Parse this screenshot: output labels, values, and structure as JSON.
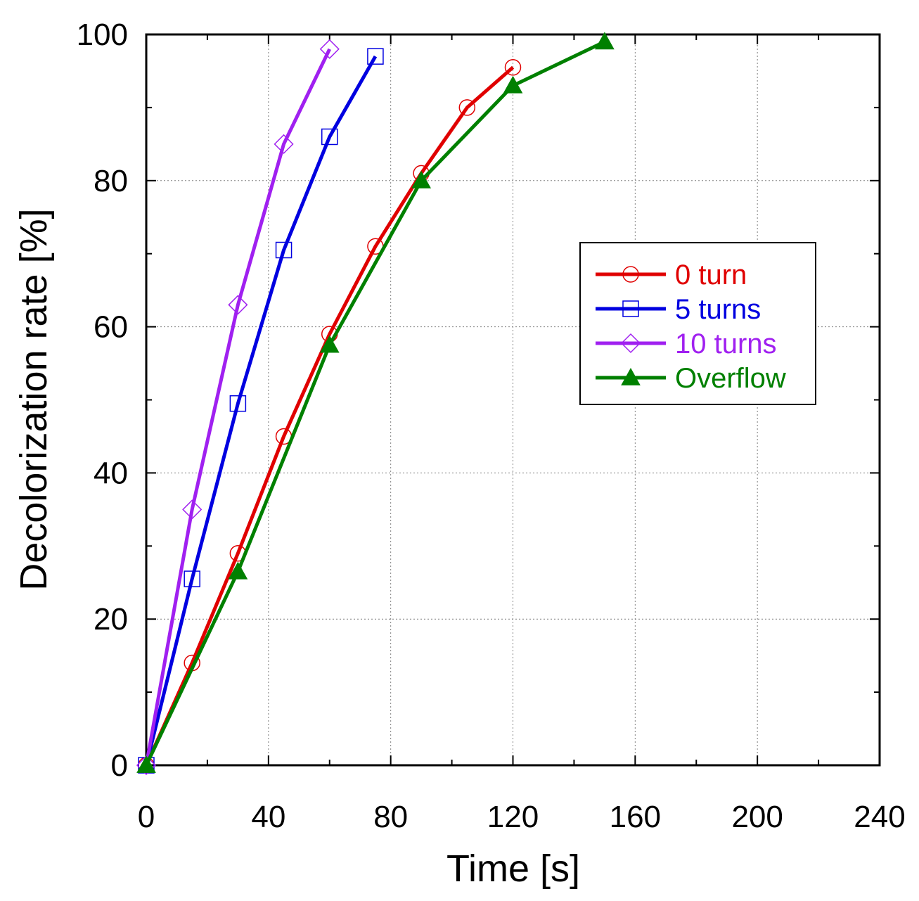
{
  "chart_data": {
    "type": "line",
    "title": "",
    "xlabel": "Time [s]",
    "ylabel": "Decolorization rate [%]",
    "xlim": [
      0,
      240
    ],
    "ylim": [
      0,
      100
    ],
    "xticks": [
      0,
      40,
      80,
      120,
      160,
      200,
      240
    ],
    "yticks": [
      0,
      20,
      40,
      60,
      80,
      100
    ],
    "grid": true,
    "legend_position": "right-middle",
    "series": [
      {
        "name": "0 turn",
        "color": "#e00000",
        "marker": "circle-open",
        "x": [
          0,
          15,
          30,
          45,
          60,
          75,
          90,
          105,
          120
        ],
        "y": [
          0,
          14,
          29,
          45,
          59,
          71,
          81,
          90,
          95.5
        ]
      },
      {
        "name": "5 turns",
        "color": "#0000e0",
        "marker": "square-open",
        "x": [
          0,
          15,
          30,
          45,
          60,
          75
        ],
        "y": [
          0,
          25.5,
          49.5,
          70.5,
          86,
          97
        ]
      },
      {
        "name": "10 turns",
        "color": "#a020f0",
        "marker": "diamond-open",
        "x": [
          0,
          15,
          30,
          45,
          60
        ],
        "y": [
          0,
          35,
          63,
          85,
          98
        ]
      },
      {
        "name": "Overflow",
        "color": "#008000",
        "marker": "triangle-filled",
        "x": [
          0,
          30,
          60,
          90,
          120,
          150
        ],
        "y": [
          0,
          26.5,
          57.5,
          80,
          93,
          99
        ]
      }
    ]
  }
}
